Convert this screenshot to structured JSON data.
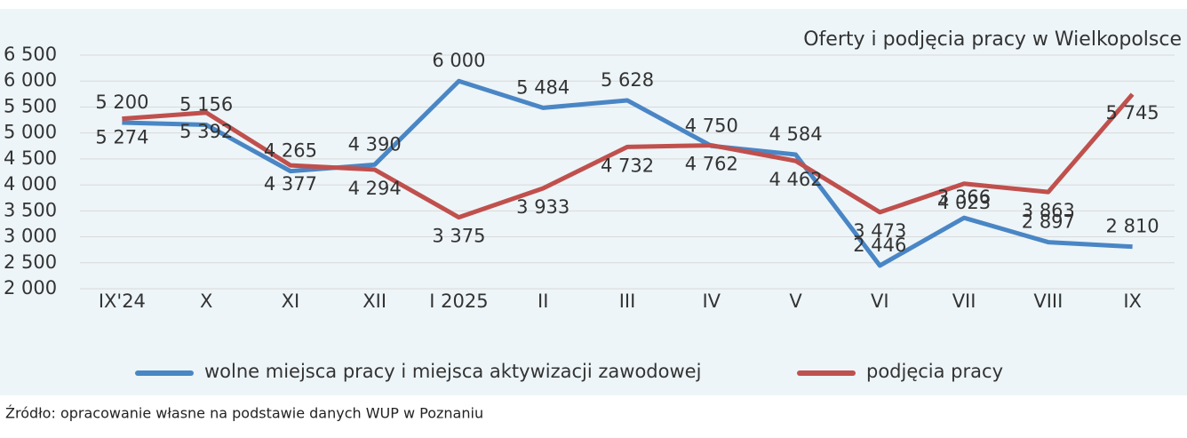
{
  "chart_data": {
    "type": "line",
    "title": "Oferty i podjęcia pracy w Wielkopolsce",
    "categories": [
      "IX'24",
      "X",
      "XI",
      "XII",
      "I 2025",
      "II",
      "III",
      "IV",
      "V",
      "VI",
      "VII",
      "VIII",
      "IX"
    ],
    "series": [
      {
        "name": "wolne miejsca pracy i miejsca aktywizacji zawodowej",
        "color": "#4a86c5",
        "values": [
          5200,
          5156,
          4265,
          4390,
          6000,
          5484,
          5628,
          4750,
          4584,
          2446,
          3366,
          2897,
          2810
        ],
        "value_labels": [
          "5 200",
          "5 156",
          "4 265",
          "4 390",
          "6 000",
          "5 484",
          "5 628",
          "4 750",
          "4 584",
          "2 446",
          "3 366",
          "2 897",
          "2 810"
        ]
      },
      {
        "name": "podjęcia pracy",
        "color": "#c0504d",
        "values": [
          5274,
          5392,
          4377,
          4294,
          3375,
          3933,
          4732,
          4762,
          4462,
          3473,
          4023,
          3863,
          5745
        ],
        "value_labels": [
          "5 274",
          "5 392",
          "4 377",
          "4 294",
          "3 375",
          "3 933",
          "4 732",
          "4 762",
          "4 462",
          "3 473",
          "4 023",
          "3 863",
          "5 745"
        ]
      }
    ],
    "ylim": [
      2000,
      6500
    ],
    "yticks": [
      {
        "value": 2000,
        "label": "2 000"
      },
      {
        "value": 2500,
        "label": "2 500"
      },
      {
        "value": 3000,
        "label": "3 000"
      },
      {
        "value": 3500,
        "label": "3 500"
      },
      {
        "value": 4000,
        "label": "4 000"
      },
      {
        "value": 4500,
        "label": "4 500"
      },
      {
        "value": 5000,
        "label": "5 000"
      },
      {
        "value": 5500,
        "label": "5 500"
      },
      {
        "value": 6000,
        "label": "6 000"
      },
      {
        "value": 6500,
        "label": "6 500"
      }
    ],
    "grid": true,
    "source": "Źródło: opracowanie własne na podstawie danych WUP w Poznaniu"
  }
}
